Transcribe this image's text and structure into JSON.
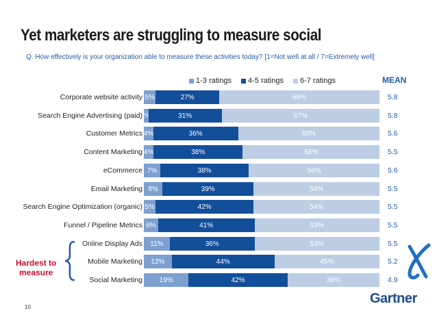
{
  "title": "Yet marketers are struggling to measure social",
  "subtitle": "Q. How effectively is your organization able to measure these activities today?  [1=Not well at all / 7=Extremely well]",
  "mean_label": "MEAN",
  "annotation": {
    "hardest_line1": "Hardest to",
    "hardest_line2": "measure"
  },
  "slide_number": "10",
  "logo": "Gartner",
  "colors": {
    "low": "#7ea0d1",
    "mid": "#124e9a",
    "high": "#bccde4",
    "accent": "#1f5ba7",
    "annotation": "#c8102e"
  },
  "icons": {
    "brace": "curly-brace-icon",
    "x": "x-mark-icon"
  },
  "chart_data": {
    "type": "bar",
    "orientation": "horizontal",
    "stacked": true,
    "title": "Yet marketers are struggling to measure social",
    "legend_position": "top",
    "categories": [
      "Corporate website activity",
      "Search Engine Advertising (paid)",
      "Customer Metrics",
      "Content Marketing",
      "eCommerce",
      "Email Marketing",
      "Search Engine Optimization (organic)",
      "Funnel / Pipeline Metrics",
      "Online Display Ads",
      "Mobile Marketing",
      "Social Marketing"
    ],
    "series": [
      {
        "name": "1-3 ratings",
        "values": [
          5,
          2,
          4,
          4,
          7,
          8,
          5,
          6,
          11,
          12,
          19
        ],
        "labels": [
          "5%",
          "2%",
          "4%",
          "4%",
          "7%",
          "8%",
          "5%",
          "6%",
          "11%",
          "12%",
          "19%"
        ]
      },
      {
        "name": "4-5 ratings",
        "values": [
          27,
          31,
          36,
          38,
          38,
          39,
          42,
          41,
          36,
          44,
          42
        ],
        "labels": [
          "27%",
          "31%",
          "36%",
          "38%",
          "38%",
          "39%",
          "42%",
          "41%",
          "36%",
          "44%",
          "42%"
        ]
      },
      {
        "name": "6-7 ratings",
        "values": [
          68,
          67,
          60,
          58,
          56,
          54,
          54,
          53,
          53,
          45,
          39
        ],
        "labels": [
          "68%",
          "67%",
          "60%",
          "58%",
          "56%",
          "54%",
          "54%",
          "53%",
          "53%",
          "45%",
          "39%"
        ]
      }
    ],
    "mean": [
      "5.8",
      "5.8",
      "5.6",
      "5.5",
      "5.6",
      "5.5",
      "5.5",
      "5.5",
      "5.5",
      "5.2",
      "4.9"
    ]
  }
}
